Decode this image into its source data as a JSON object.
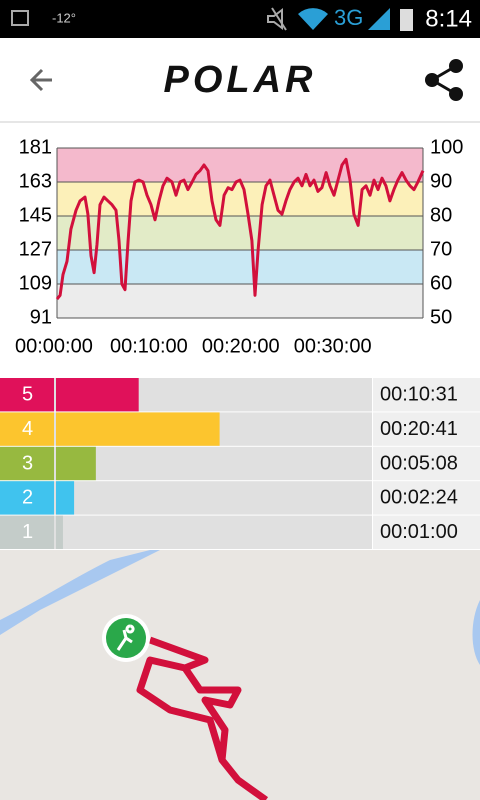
{
  "status_bar": {
    "temperature": "-12°",
    "network": "3G",
    "time": "8:14"
  },
  "header": {
    "logo": "POLAR"
  },
  "chart_data": [
    {
      "type": "line",
      "x": [
        0,
        20,
        39,
        65,
        91,
        124,
        150,
        183,
        202,
        222,
        242,
        261,
        281,
        307,
        333,
        359,
        385,
        405,
        424,
        444,
        464,
        483,
        509,
        535,
        562,
        588,
        614,
        640,
        666,
        692,
        718,
        751,
        777,
        803,
        829,
        855,
        882,
        908,
        934,
        960,
        986,
        1012,
        1038,
        1064,
        1091,
        1117,
        1143,
        1169,
        1195,
        1221,
        1247,
        1273,
        1293,
        1313,
        1339,
        1365,
        1391,
        1417,
        1443,
        1469,
        1495,
        1521,
        1548,
        1574,
        1600,
        1626,
        1652,
        1678,
        1704,
        1730,
        1757,
        1783,
        1809,
        1835,
        1861,
        1887,
        1913,
        1939,
        1966,
        1992,
        2018,
        2044,
        2070,
        2096,
        2122,
        2148,
        2174,
        2200,
        2226,
        2253,
        2279,
        2305,
        2331,
        2357,
        2390
      ],
      "series": [
        {
          "color": "#d2103c",
          "values": [
            101,
            103,
            114,
            121,
            138,
            148,
            153,
            155,
            146,
            124,
            115,
            130,
            151,
            155,
            153,
            151,
            148,
            132,
            109,
            106,
            132,
            153,
            163,
            164,
            163,
            156,
            151,
            143,
            153,
            161,
            165,
            163,
            156,
            163,
            164,
            159,
            163,
            167,
            169,
            172,
            169,
            153,
            143,
            140,
            156,
            160,
            159,
            163,
            164,
            159,
            146,
            132,
            103,
            127,
            151,
            161,
            164,
            156,
            148,
            146,
            153,
            159,
            163,
            165,
            161,
            167,
            161,
            164,
            158,
            160,
            168,
            161,
            156,
            164,
            172,
            175,
            164,
            146,
            140,
            159,
            161,
            156,
            164,
            159,
            165,
            161,
            153,
            159,
            164,
            168,
            164,
            161,
            159,
            163,
            169
          ]
        }
      ],
      "xlim": [
        0,
        2390
      ],
      "xticks": [
        {
          "value": 0,
          "label": "00:00:00"
        },
        {
          "value": 600,
          "label": "00:10:00"
        },
        {
          "value": 1200,
          "label": "00:20:00"
        },
        {
          "value": 1800,
          "label": "00:30:00"
        }
      ],
      "ylim": [
        91,
        181
      ],
      "yticks": [
        91,
        109,
        127,
        145,
        163,
        181
      ],
      "y2lim": [
        50,
        100
      ],
      "y2ticks": [
        50,
        60,
        70,
        80,
        90,
        100
      ],
      "band_colors": [
        "#ececec",
        "#c9e8f4",
        "#e2ebc7",
        "#fcf0b9",
        "#f4b9cc"
      ],
      "grid": true
    },
    {
      "type": "bar",
      "orientation": "horizontal",
      "categories": [
        "5",
        "4",
        "3",
        "2",
        "1"
      ],
      "values": [
        631,
        1241,
        308,
        144,
        60
      ],
      "value_labels": [
        "00:10:31",
        "00:20:41",
        "00:05:08",
        "00:02:24",
        "00:01:00"
      ],
      "colors": [
        "#e0115a",
        "#fcc52e",
        "#97b940",
        "#40c3ee",
        "#c4ccc9"
      ],
      "xlim": [
        0,
        2390
      ]
    }
  ]
}
